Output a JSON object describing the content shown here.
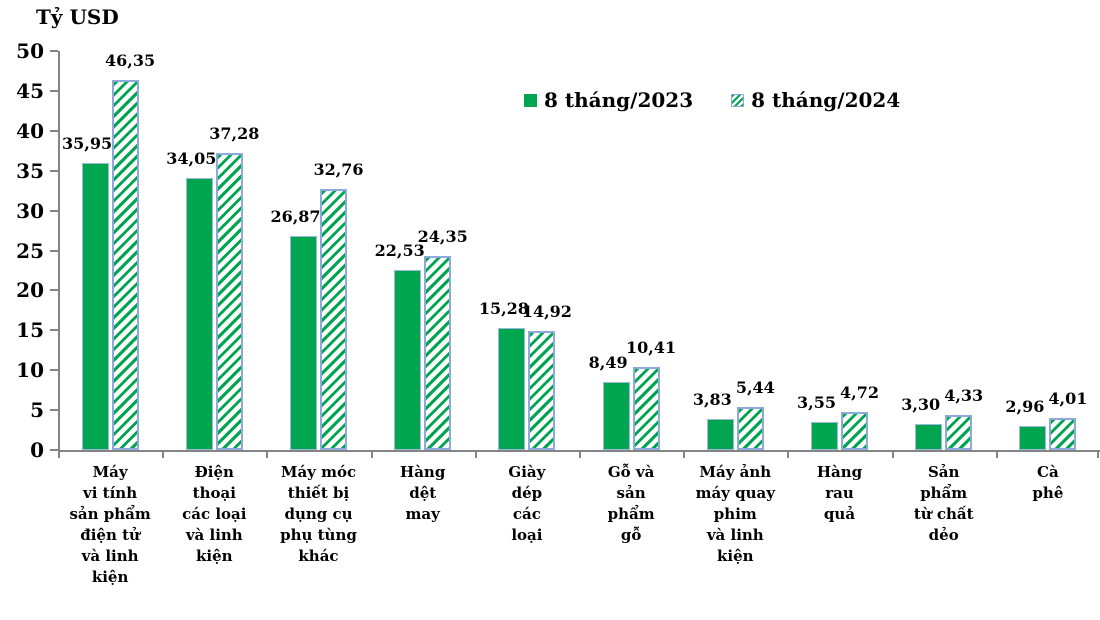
{
  "chart": {
    "title": "Tỷ USD",
    "legend": [
      {
        "label": "8 tháng/2023",
        "swatch": "solid-green-square-icon"
      },
      {
        "label": "8 tháng/2024",
        "swatch": "hatched-green-square-icon"
      }
    ]
  },
  "chart_data": {
    "type": "bar",
    "title": "Tỷ USD",
    "ylabel": "Tỷ USD",
    "xlabel": "",
    "ylim": [
      0,
      50
    ],
    "yticks": [
      0,
      5,
      10,
      15,
      20,
      25,
      30,
      35,
      40,
      45,
      50
    ],
    "grid": false,
    "legend_position": "top-center",
    "categories": [
      "Máy vi tính sản phẩm điện tử và linh kiện",
      "Điện thoại các loại và linh kiện",
      "Máy móc thiết bị dụng cụ phụ tùng khác",
      "Hàng dệt may",
      "Giày dép các loại",
      "Gỗ và sản phẩm gỗ",
      "Máy ảnh máy quay phim và linh kiện",
      "Hàng rau quả",
      "Sản phẩm từ chất dẻo",
      "Cà phê"
    ],
    "category_lines": [
      [
        "Máy",
        "vi tính",
        "sản phẩm",
        "điện tử",
        "và linh",
        "kiện"
      ],
      [
        "Điện",
        "thoại",
        "các loại",
        "và linh",
        "kiện"
      ],
      [
        "Máy móc",
        "thiết bị",
        "dụng cụ",
        "phụ tùng",
        "khác"
      ],
      [
        "Hàng",
        "dệt",
        "may"
      ],
      [
        "Giày",
        "dép",
        "các",
        "loại"
      ],
      [
        "Gỗ và",
        "sản",
        "phẩm",
        "gỗ"
      ],
      [
        "Máy ảnh",
        "máy quay",
        "phim",
        "và linh",
        "kiện"
      ],
      [
        "Hàng",
        "rau",
        "quả"
      ],
      [
        "Sản",
        "phẩm",
        "từ chất",
        "dẻo"
      ],
      [
        "Cà",
        "phê"
      ]
    ],
    "series": [
      {
        "name": "8 tháng/2023",
        "values": [
          35.95,
          34.05,
          26.87,
          22.53,
          15.28,
          8.49,
          3.83,
          3.55,
          3.3,
          2.96
        ],
        "labels": [
          "35,95",
          "34,05",
          "26,87",
          "22,53",
          "15,28",
          "8,49",
          "3,83",
          "3,55",
          "3,30",
          "2,96"
        ]
      },
      {
        "name": "8 tháng/2024",
        "values": [
          46.35,
          37.28,
          32.76,
          24.35,
          14.92,
          10.41,
          5.44,
          4.72,
          4.33,
          4.01
        ],
        "labels": [
          "46,35",
          "37,28",
          "32,76",
          "24,35",
          "14,92",
          "10,41",
          "5,44",
          "4,72",
          "4,33",
          "4,01"
        ]
      }
    ]
  },
  "colors": {
    "solid_bar_green": "#00A550",
    "hatch_stripe_green": "#00A550",
    "bar_border_blue": "#8EAADB",
    "axis_gray": "#848484",
    "text": "#000000",
    "background": "#ffffff"
  }
}
